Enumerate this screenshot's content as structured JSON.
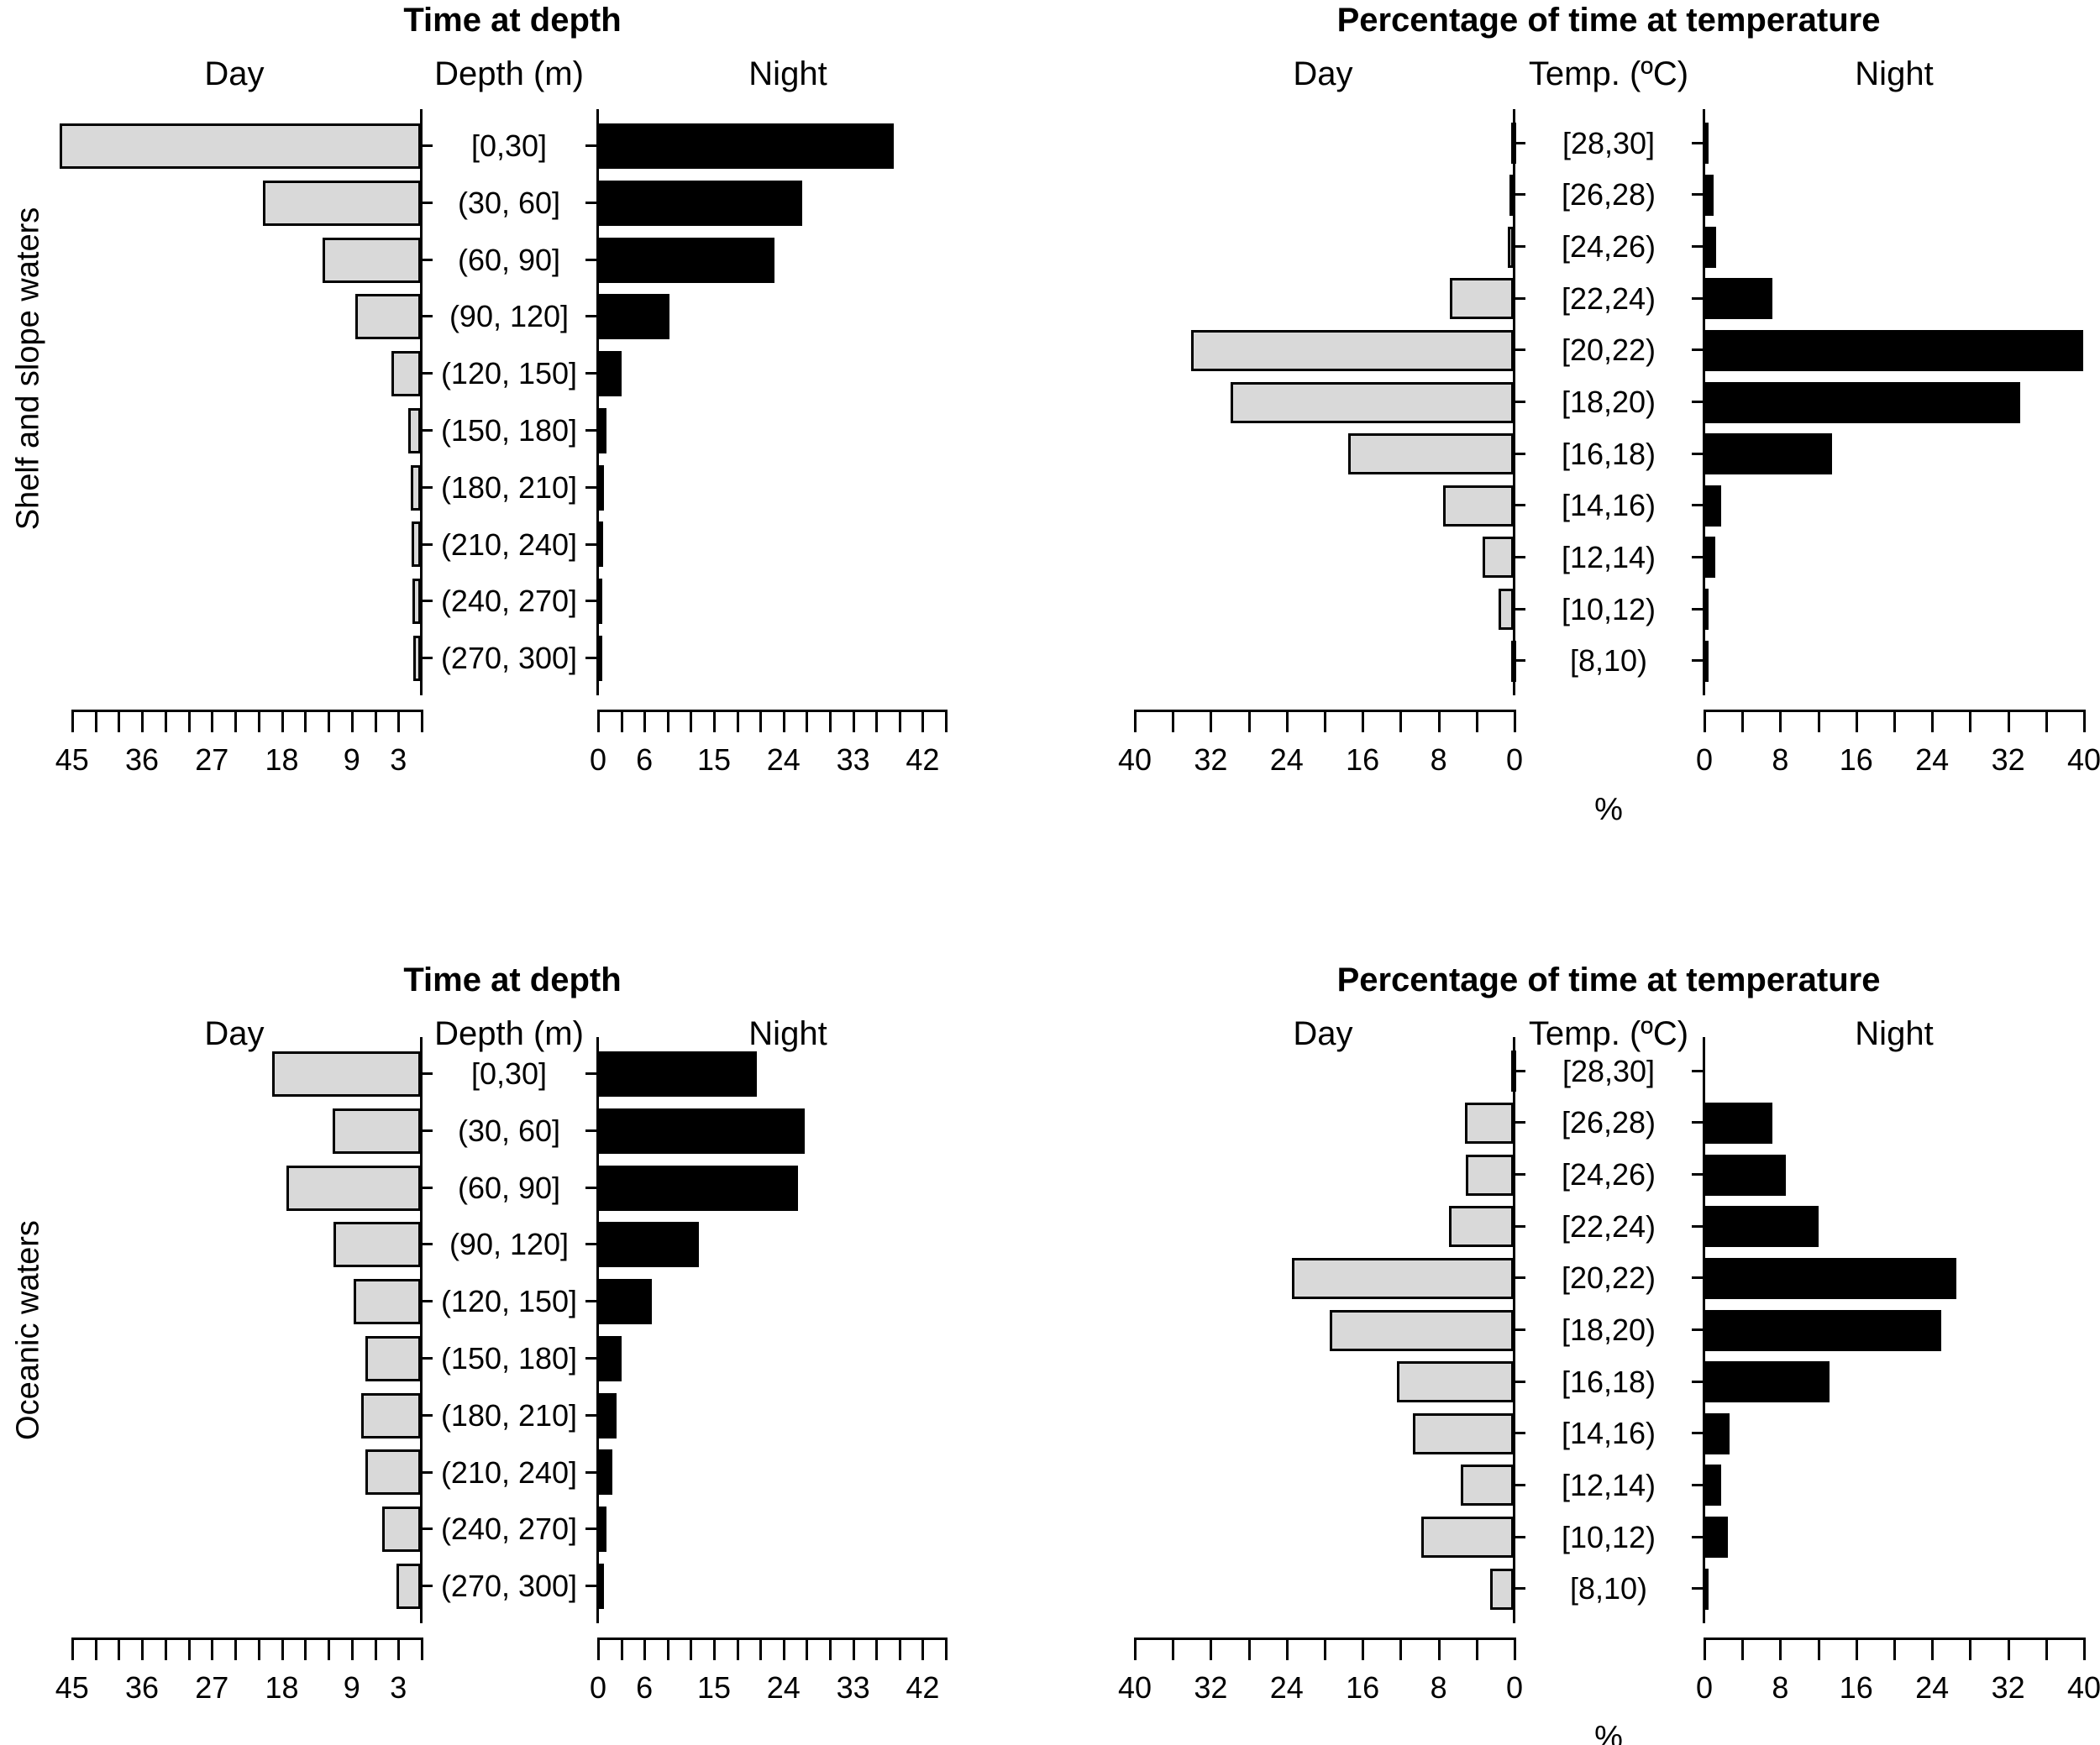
{
  "figure": {
    "row_labels": [
      "Shelf and slope waters",
      "Oceanic waters"
    ],
    "percent_label": "%"
  },
  "colors": {
    "day_fill": "#d9d9d9",
    "night_fill": "#000000",
    "bar_border": "#000000",
    "axis": "#000000"
  },
  "chart_data": [
    {
      "type": "bar",
      "orientation": "horizontal-pyramid",
      "group": "Shelf and slope waters",
      "title": "Time at depth",
      "headers": {
        "day": "Day",
        "center": "Depth (m)",
        "night": "Night"
      },
      "categories": [
        "[0,30]",
        "(30, 60]",
        "(60, 90]",
        "(90, 120]",
        "(120, 150]",
        "(150, 180]",
        "(180, 210]",
        "(210, 240]",
        "(240, 270]",
        "(270, 300]"
      ],
      "series": [
        {
          "name": "Day",
          "values": [
            46.5,
            20.3,
            12.6,
            8.4,
            3.8,
            1.6,
            1.3,
            1.2,
            1.1,
            1.0
          ]
        },
        {
          "name": "Night",
          "values": [
            38.4,
            26.5,
            22.9,
            9.3,
            3.2,
            1.2,
            0.9,
            0.8,
            0.5,
            0.4
          ]
        }
      ],
      "axis": {
        "xlim": [
          0,
          45
        ],
        "tick_step": 3,
        "grid": false,
        "tick_labels_day": [
          45,
          36,
          27,
          18,
          9,
          3
        ],
        "tick_labels_night": [
          0,
          6,
          15,
          24,
          33,
          42
        ],
        "xlabel": ""
      }
    },
    {
      "type": "bar",
      "orientation": "horizontal-pyramid",
      "group": "Shelf and slope waters",
      "title": "Percentage of time at temperature",
      "headers": {
        "day": "Day",
        "center": "Temp. (ºC)",
        "night": "Night"
      },
      "categories": [
        "[28,30]",
        "[26,28)",
        "[24,26)",
        "[22,24)",
        "[20,22)",
        "[18,20)",
        "[16,18)",
        "[14,16)",
        "[12,14)",
        "[10,12)",
        "[8,10)"
      ],
      "series": [
        {
          "name": "Day",
          "values": [
            0.2,
            0.4,
            0.6,
            6.7,
            34.0,
            29.8,
            17.4,
            7.4,
            3.3,
            1.6,
            0.3
          ]
        },
        {
          "name": "Night",
          "values": [
            0.2,
            1.1,
            1.3,
            7.3,
            40.0,
            33.4,
            13.5,
            1.9,
            1.2,
            0.4,
            0.1
          ]
        }
      ],
      "axis": {
        "xlim": [
          0,
          40
        ],
        "tick_step": 4,
        "grid": false,
        "tick_labels_day": [
          40,
          32,
          24,
          16,
          8,
          0
        ],
        "tick_labels_night": [
          0,
          8,
          16,
          24,
          32,
          40
        ],
        "xlabel": "%"
      }
    },
    {
      "type": "bar",
      "orientation": "horizontal-pyramid",
      "group": "Oceanic waters",
      "title": "Time at depth",
      "headers": {
        "day": "Day",
        "center": "Depth (m)",
        "night": "Night"
      },
      "categories": [
        "[0,30]",
        "(30, 60]",
        "(60, 90]",
        "(90, 120]",
        "(120, 150]",
        "(150, 180]",
        "(180, 210]",
        "(210, 240]",
        "(240, 270]",
        "(270, 300]"
      ],
      "series": [
        {
          "name": "Day",
          "values": [
            19.1,
            11.3,
            17.3,
            11.2,
            8.7,
            7.1,
            7.7,
            7.1,
            5.0,
            3.1
          ]
        },
        {
          "name": "Night",
          "values": [
            20.7,
            26.9,
            26.0,
            13.1,
            7.1,
            3.2,
            2.5,
            2.0,
            1.2,
            0.9
          ]
        }
      ],
      "axis": {
        "xlim": [
          0,
          45
        ],
        "tick_step": 3,
        "grid": false,
        "tick_labels_day": [
          45,
          36,
          27,
          18,
          9,
          3
        ],
        "tick_labels_night": [
          0,
          6,
          15,
          24,
          33,
          42
        ],
        "xlabel": ""
      }
    },
    {
      "type": "bar",
      "orientation": "horizontal-pyramid",
      "group": "Oceanic waters",
      "title": "Percentage of time at temperature",
      "headers": {
        "day": "Day",
        "center": "Temp. (ºC)",
        "night": "Night"
      },
      "categories": [
        "[28,30]",
        "[26,28)",
        "[24,26)",
        "[22,24)",
        "[20,22)",
        "[18,20)",
        "[16,18)",
        "[14,16)",
        "[12,14)",
        "[10,12)",
        "[8,10)"
      ],
      "series": [
        {
          "name": "Day",
          "values": [
            0.1,
            5.1,
            5.0,
            6.8,
            23.4,
            19.4,
            12.3,
            10.6,
            5.6,
            9.7,
            2.5
          ]
        },
        {
          "name": "Night",
          "values": [
            0.0,
            7.3,
            8.7,
            12.1,
            26.6,
            25.0,
            13.3,
            2.7,
            1.9,
            2.6,
            0.2
          ]
        }
      ],
      "axis": {
        "xlim": [
          0,
          40
        ],
        "tick_step": 4,
        "grid": false,
        "tick_labels_day": [
          40,
          32,
          24,
          16,
          8,
          0
        ],
        "tick_labels_night": [
          0,
          8,
          16,
          24,
          32,
          40
        ],
        "xlabel": "%"
      }
    }
  ]
}
